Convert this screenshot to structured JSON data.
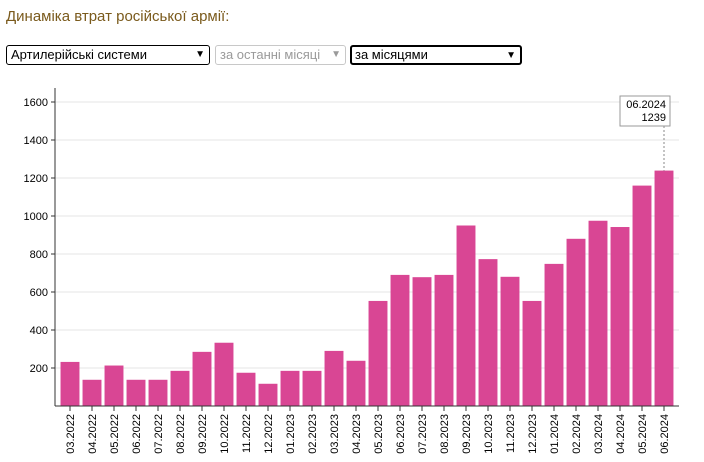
{
  "header": {
    "title": "Динаміка втрат російської армії:"
  },
  "controls": {
    "category": {
      "value": "Артилерійські системи"
    },
    "period": {
      "value": "за останні місяці"
    },
    "grouping": {
      "value": "за місяцями"
    }
  },
  "tooltip": {
    "label": "06.2024",
    "value": "1239"
  },
  "colors": {
    "bar": "#d94694",
    "title": "#7a5a1c",
    "grid": "#e6e6e6"
  },
  "chart_data": {
    "type": "bar",
    "categories": [
      "03.2022",
      "04.2022",
      "05.2022",
      "06.2022",
      "07.2022",
      "08.2022",
      "09.2022",
      "10.2022",
      "11.2022",
      "12.2022",
      "01.2023",
      "02.2023",
      "03.2023",
      "04.2023",
      "05.2023",
      "06.2023",
      "07.2023",
      "08.2023",
      "09.2023",
      "10.2023",
      "11.2023",
      "12.2023",
      "01.2024",
      "02.2024",
      "03.2024",
      "04.2024",
      "05.2024",
      "06.2024"
    ],
    "values": [
      232,
      138,
      213,
      138,
      138,
      185,
      285,
      333,
      175,
      117,
      185,
      185,
      290,
      238,
      553,
      690,
      678,
      690,
      950,
      773,
      680,
      553,
      748,
      880,
      975,
      942,
      1160,
      1239
    ],
    "ylim": [
      0,
      1700
    ],
    "yticks": [
      200,
      400,
      600,
      800,
      1000,
      1200,
      1400,
      1600
    ],
    "grid": true
  }
}
